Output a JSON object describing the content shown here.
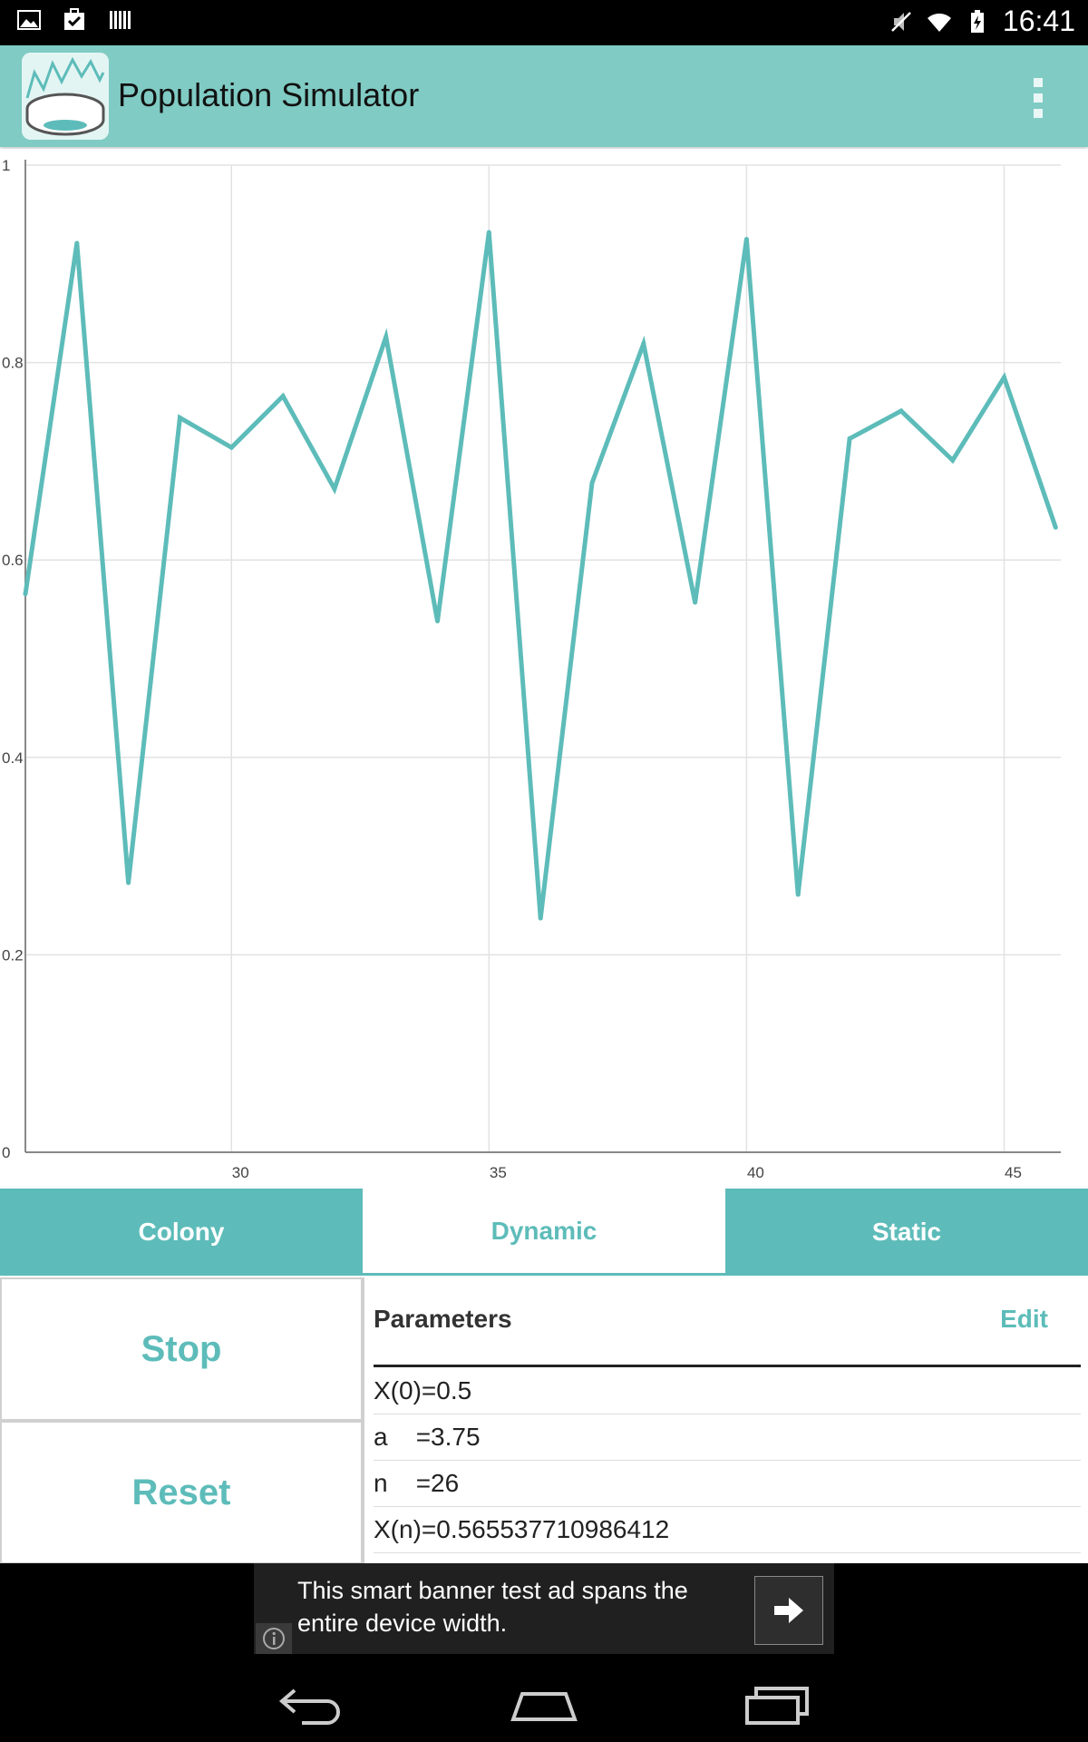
{
  "status_bar": {
    "time": "16:41",
    "left_icons": [
      "gallery-icon",
      "task-check-icon",
      "barcode-icon"
    ],
    "right_icons": [
      "mute-icon",
      "wifi-icon",
      "battery-charging-icon"
    ]
  },
  "app_bar": {
    "title": "Population Simulator",
    "logo_icon": "population-logo-icon",
    "menu_icon": "overflow-menu-icon"
  },
  "chart_data": {
    "type": "line",
    "series": [
      {
        "x": [
          26,
          27,
          28,
          29,
          30,
          31,
          32,
          33,
          34,
          35,
          36,
          37,
          38,
          39,
          40,
          41,
          42,
          43,
          44,
          45,
          46
        ],
        "y": [
          0.5655,
          0.921,
          0.273,
          0.744,
          0.714,
          0.766,
          0.672,
          0.826,
          0.538,
          0.932,
          0.237,
          0.678,
          0.819,
          0.557,
          0.925,
          0.261,
          0.723,
          0.751,
          0.701,
          0.785,
          0.633
        ]
      }
    ],
    "x_ticks": [
      "30",
      "35",
      "40",
      "45"
    ],
    "y_ticks": [
      "0",
      "0.2",
      "0.4",
      "0.6",
      "0.8",
      "1"
    ],
    "xlim": [
      26,
      46.1
    ],
    "ylim": [
      0,
      1
    ],
    "grid": true,
    "line_color": "#5dbcb9"
  },
  "tabs": [
    {
      "label": "Colony"
    },
    {
      "label": "Dynamic"
    },
    {
      "label": "Static"
    }
  ],
  "controls": {
    "stop_label": "Stop",
    "reset_label": "Reset"
  },
  "parameters": {
    "title": "Parameters",
    "edit_label": "Edit",
    "rows": [
      {
        "text": "X(0)=0.5"
      },
      {
        "text": "a    =3.75"
      },
      {
        "text": "n    =26"
      },
      {
        "text": "X(n)=0.565537710986412"
      }
    ]
  },
  "ad": {
    "text": "This smart banner test ad spans the entire device width.",
    "info_icon": "info-icon",
    "arrow_icon": "arrow-right-icon"
  },
  "nav_bar": {
    "icons": [
      "back-icon",
      "home-icon",
      "recents-icon"
    ]
  },
  "colors": {
    "accent": "#5dbcb9",
    "app_bar": "#80cbc4"
  }
}
